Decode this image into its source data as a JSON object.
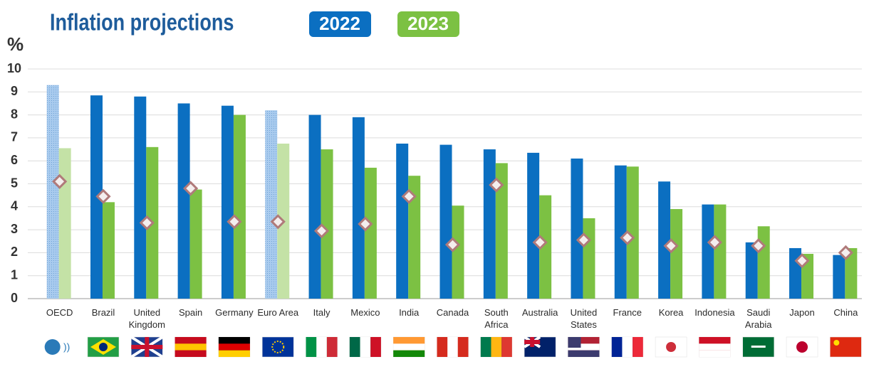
{
  "chart_data": {
    "type": "bar",
    "title": "Inflation projections",
    "y_label": "%",
    "categories": [
      "OECD",
      "Brazil",
      "United Kingdom",
      "Spain",
      "Germany",
      "Euro Area",
      "Italy",
      "Mexico",
      "India",
      "Canada",
      "South Africa",
      "Australia",
      "United States",
      "France",
      "Korea",
      "Indonesia",
      "Saudi Arabia",
      "Japon",
      "China"
    ],
    "series": [
      {
        "name": "2022",
        "color": "#0b6fc1",
        "values": [
          9.3,
          8.85,
          8.8,
          8.5,
          8.4,
          8.2,
          8.0,
          7.9,
          6.75,
          6.7,
          6.5,
          6.35,
          6.1,
          5.8,
          5.1,
          4.1,
          2.45,
          2.2,
          1.9
        ]
      },
      {
        "name": "2023",
        "color": "#7cc143",
        "values": [
          6.55,
          4.2,
          6.6,
          4.75,
          8.0,
          6.75,
          6.5,
          5.7,
          5.35,
          4.05,
          5.9,
          4.5,
          3.5,
          5.75,
          3.9,
          4.1,
          3.15,
          1.95,
          2.2
        ]
      }
    ],
    "markers": {
      "color": "#b07a7a",
      "values": [
        5.1,
        4.45,
        3.3,
        4.8,
        3.35,
        3.35,
        2.95,
        3.25,
        4.45,
        2.35,
        4.95,
        2.45,
        2.55,
        2.65,
        2.3,
        2.45,
        2.3,
        1.65,
        2.0
      ]
    },
    "highlight": [
      0,
      5
    ],
    "ylim": [
      0,
      10
    ],
    "yticks": [
      0,
      1,
      2,
      3,
      4,
      5,
      6,
      7,
      8,
      9,
      10
    ],
    "grid": true
  }
}
